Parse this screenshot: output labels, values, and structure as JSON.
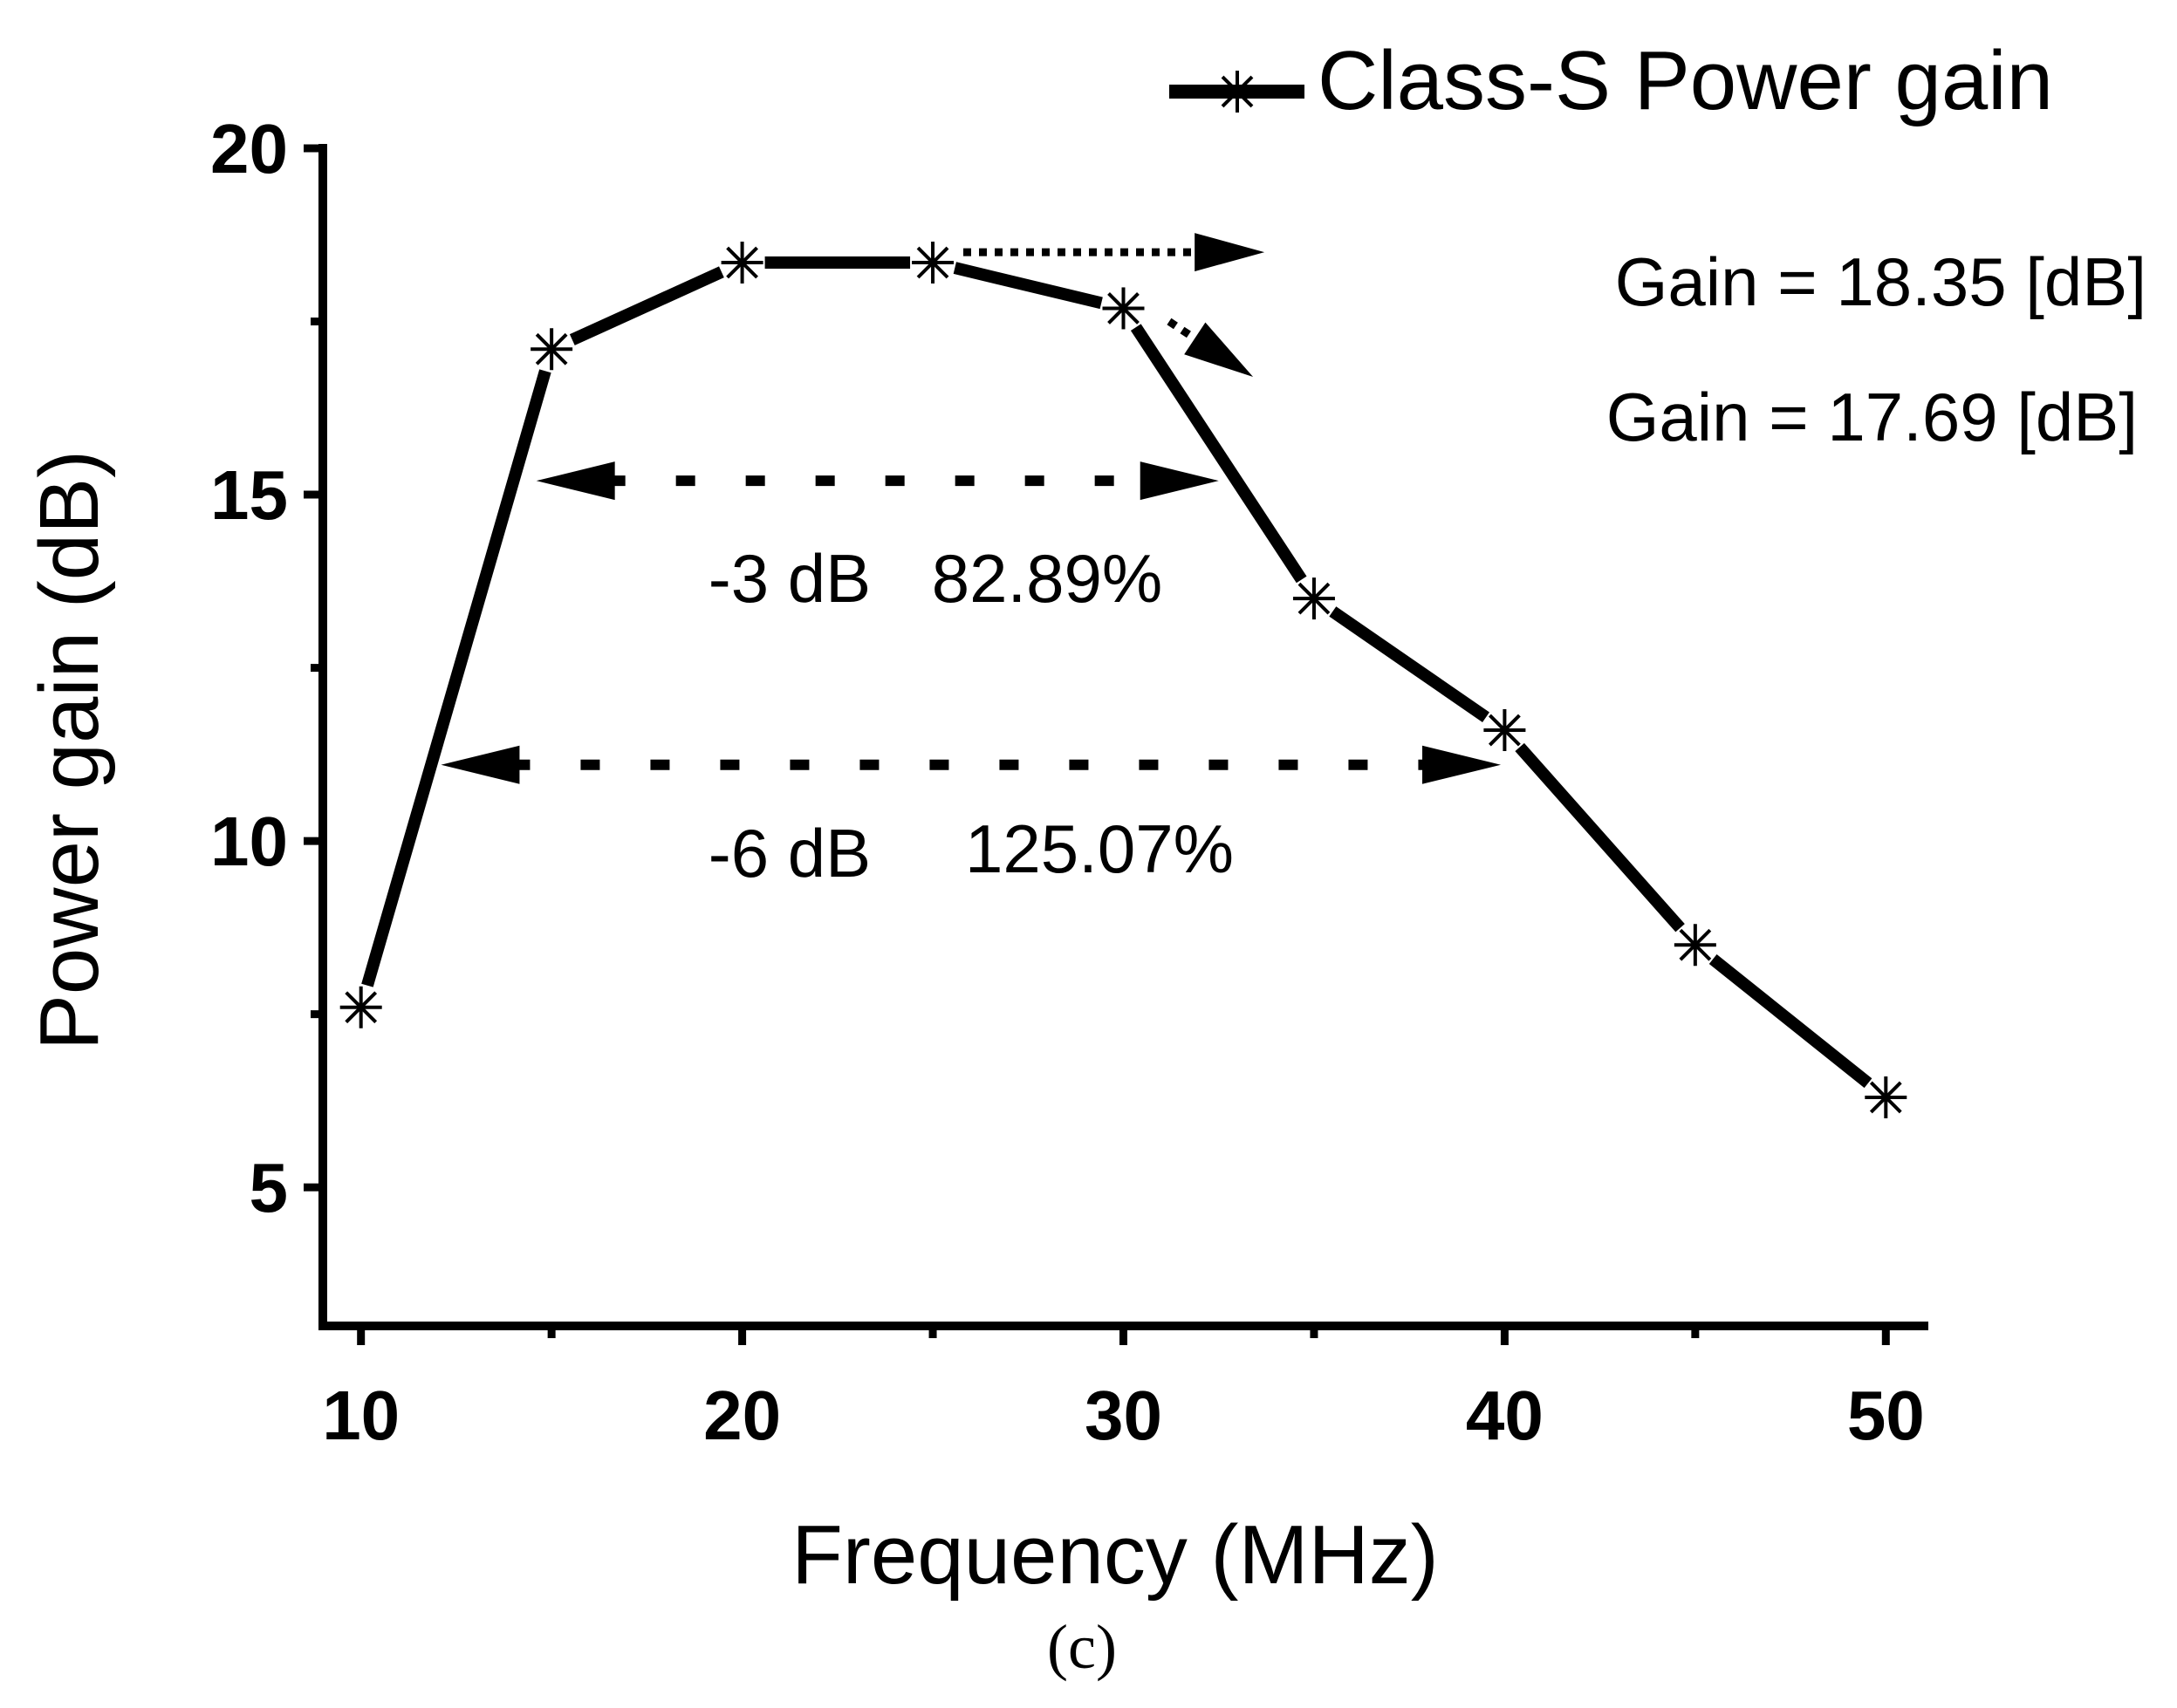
{
  "chart_data": {
    "type": "line",
    "title": "",
    "xlabel": "Frequency (MHz)",
    "ylabel": "Power gain (dB)",
    "xlim": [
      9,
      51
    ],
    "ylim": [
      3,
      20
    ],
    "xticks": [
      10,
      20,
      30,
      40,
      50
    ],
    "xticks_minor": [
      15,
      25,
      35,
      45
    ],
    "yticks": [
      5,
      10,
      15,
      20
    ],
    "yticks_minor": [
      7.5,
      12.5,
      17.5
    ],
    "grid": false,
    "legend_position": "top-right",
    "series": [
      {
        "name": "Class-S Power gain",
        "marker": "asterisk",
        "color": "#000000",
        "x": [
          10,
          15,
          20,
          25,
          30,
          35,
          40,
          45,
          50
        ],
        "y": [
          7.6,
          17.1,
          18.35,
          18.35,
          17.69,
          13.5,
          11.6,
          8.5,
          6.3
        ]
      }
    ],
    "annotations": [
      {
        "id": "gain-max",
        "text": "Gain = 18.35 [dB]",
        "from_x": 25.8,
        "from_y": 18.5,
        "to_x": 33.7,
        "to_y": 18.5
      },
      {
        "id": "gain-30",
        "text": "Gain = 17.69 [dB]",
        "from_x": 31.2,
        "from_y": 17.5,
        "to_x": 33.4,
        "to_y": 16.7
      },
      {
        "id": "bw-3db",
        "label": "-3 dB",
        "percent": "82.89%",
        "x_start": 14.6,
        "x_end": 32.5,
        "y": 15.2
      },
      {
        "id": "bw-6db",
        "label": "-6 dB",
        "percent": "125.07%",
        "x_start": 12.1,
        "x_end": 39.9,
        "y": 11.1
      }
    ]
  },
  "caption": "(c)"
}
